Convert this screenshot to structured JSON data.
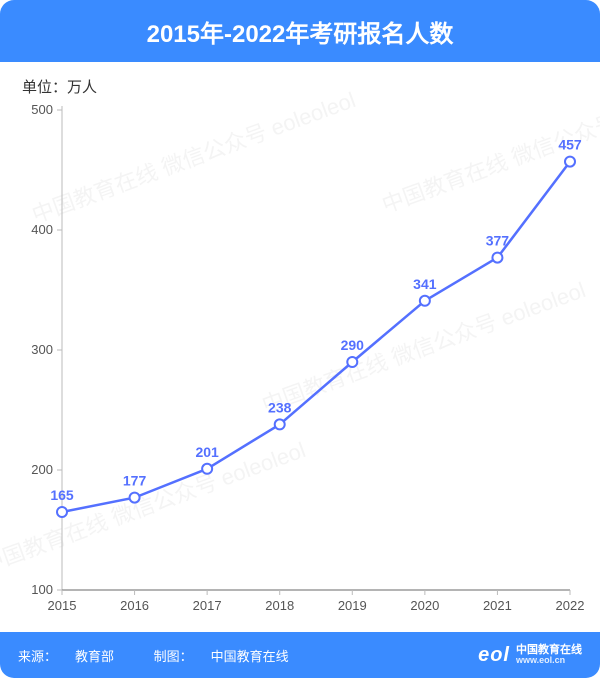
{
  "title": "2015年-2022年考研报名人数",
  "title_fontsize": 24,
  "title_color": "#ffffff",
  "header_bg": "#3a8bff",
  "footer_bg": "#3a8bff",
  "card_bg": "#ffffff",
  "unit_label": "单位：万人",
  "unit_fontsize": 15,
  "unit_color": "#333333",
  "chart": {
    "type": "line",
    "categories": [
      "2015",
      "2016",
      "2017",
      "2018",
      "2019",
      "2020",
      "2021",
      "2022"
    ],
    "values": [
      165,
      177,
      201,
      238,
      290,
      341,
      377,
      457
    ],
    "line_color": "#5470ff",
    "line_width": 2.5,
    "marker_style": "circle-open",
    "marker_size": 5,
    "marker_fill": "#ffffff",
    "marker_stroke": "#5470ff",
    "label_color": "#5470ff",
    "label_fontsize": 14,
    "ylim": [
      100,
      500
    ],
    "ytick_step": 100,
    "yticks": [
      100,
      200,
      300,
      400,
      500
    ],
    "axis_color": "#bbbbbb",
    "baseline_color": "#888888",
    "tick_fontsize": 13,
    "tick_color": "#555555",
    "grid": false,
    "plot_bg": "#ffffff"
  },
  "footer": {
    "source_label": "来源：",
    "source_value": "教育部",
    "producer_label": "制图：",
    "producer_value": "中国教育在线",
    "fontsize": 13,
    "logo_text": "eol",
    "brand_line1": "中国教育在线",
    "brand_line2": "www.eol.cn"
  },
  "watermark_text": "中国教育在线 微信公众号 eoleoleol"
}
